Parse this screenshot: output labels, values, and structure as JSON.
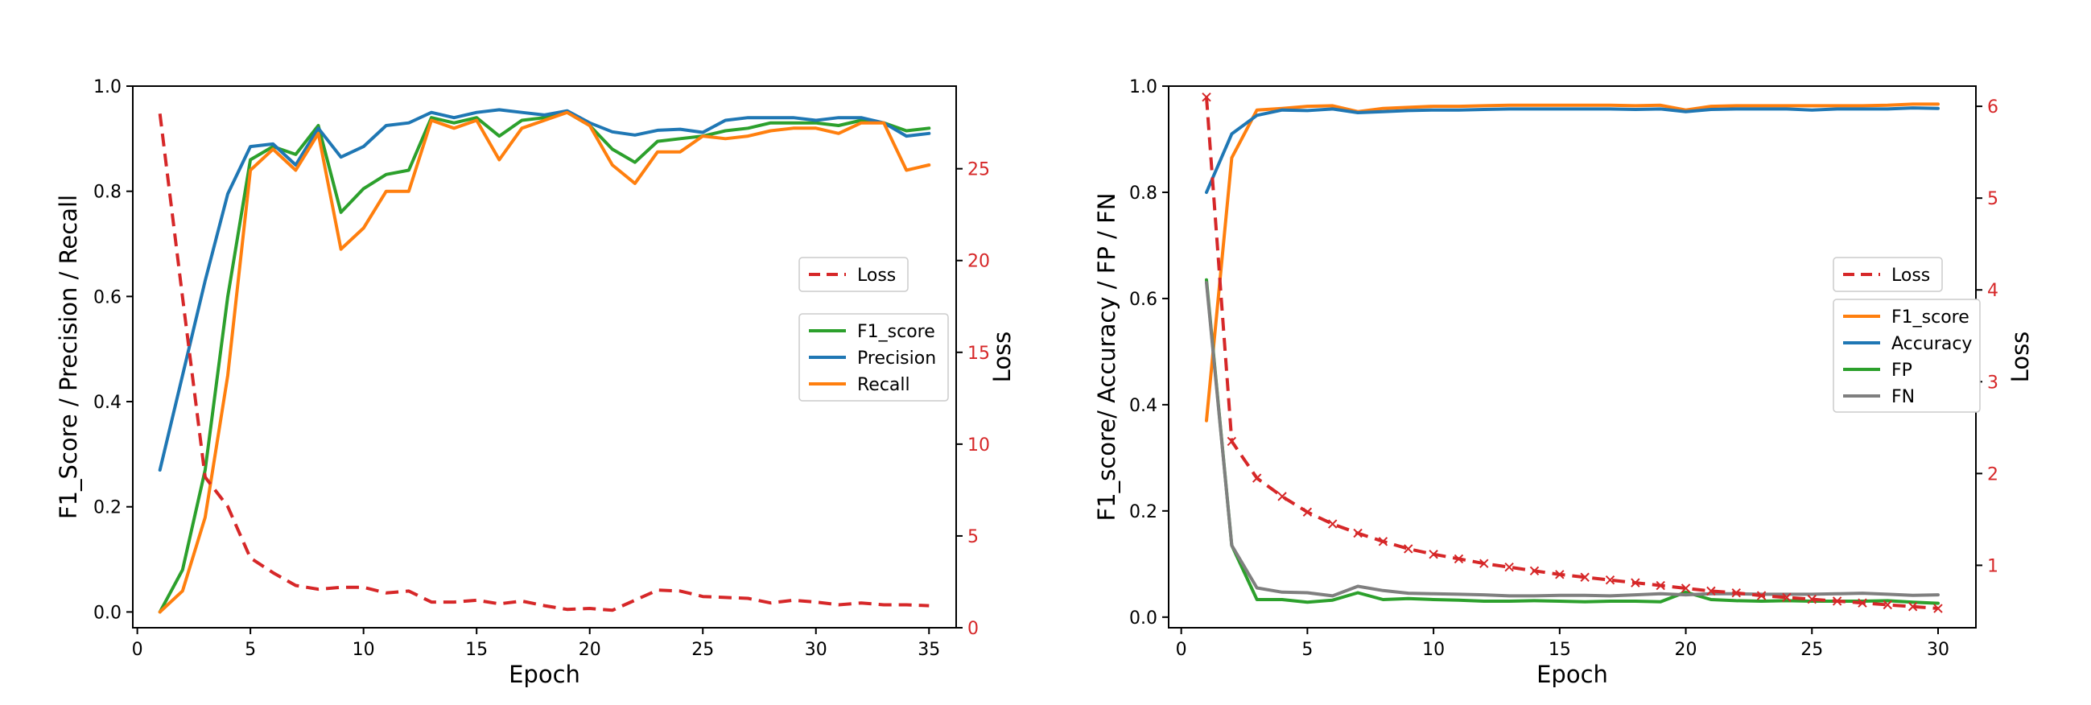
{
  "chart_data": [
    {
      "type": "line",
      "title": "",
      "xlabel": "Epoch",
      "ylabel": "F1_Score / Precision / Recall",
      "y2label": "Loss",
      "xlim": [
        -0.2,
        36.2
      ],
      "ylim": [
        -0.03,
        1.0
      ],
      "y2lim": [
        0,
        29.5
      ],
      "xticks": [
        0,
        5,
        10,
        15,
        20,
        25,
        30,
        35
      ],
      "yticks": [
        0.0,
        0.2,
        0.4,
        0.6,
        0.8,
        1.0
      ],
      "y2ticks": [
        0,
        5,
        10,
        15,
        20,
        25
      ],
      "x": [
        1,
        2,
        3,
        4,
        5,
        6,
        7,
        8,
        9,
        10,
        11,
        12,
        13,
        14,
        15,
        16,
        17,
        18,
        19,
        20,
        21,
        22,
        23,
        24,
        25,
        26,
        27,
        28,
        29,
        30,
        31,
        32,
        33,
        34,
        35
      ],
      "series": [
        {
          "name": "F1_score",
          "color": "#2ca02c",
          "axis": "left",
          "values": [
            0.0,
            0.08,
            0.27,
            0.6,
            0.86,
            0.885,
            0.87,
            0.925,
            0.76,
            0.805,
            0.832,
            0.84,
            0.94,
            0.93,
            0.94,
            0.905,
            0.935,
            0.94,
            0.95,
            0.925,
            0.88,
            0.855,
            0.895,
            0.9,
            0.905,
            0.915,
            0.92,
            0.93,
            0.93,
            0.93,
            0.925,
            0.935,
            0.93,
            0.915,
            0.92
          ]
        },
        {
          "name": "Precision",
          "color": "#1f77b4",
          "axis": "left",
          "values": [
            0.27,
            0.45,
            0.63,
            0.795,
            0.885,
            0.89,
            0.85,
            0.92,
            0.865,
            0.885,
            0.925,
            0.93,
            0.95,
            0.94,
            0.95,
            0.955,
            0.95,
            0.945,
            0.953,
            0.93,
            0.913,
            0.907,
            0.916,
            0.918,
            0.912,
            0.935,
            0.94,
            0.94,
            0.94,
            0.935,
            0.94,
            0.94,
            0.93,
            0.905,
            0.91
          ]
        },
        {
          "name": "Recall",
          "color": "#ff7f0e",
          "axis": "left",
          "values": [
            0.0,
            0.04,
            0.18,
            0.45,
            0.84,
            0.88,
            0.84,
            0.91,
            0.69,
            0.73,
            0.8,
            0.8,
            0.935,
            0.92,
            0.935,
            0.86,
            0.92,
            0.935,
            0.95,
            0.925,
            0.85,
            0.815,
            0.875,
            0.875,
            0.905,
            0.9,
            0.905,
            0.915,
            0.92,
            0.92,
            0.91,
            0.93,
            0.93,
            0.84,
            0.85
          ]
        },
        {
          "name": "Loss",
          "color": "#d62728",
          "axis": "right",
          "dashed": true,
          "values": [
            28.0,
            18.0,
            8.2,
            6.6,
            3.8,
            3.0,
            2.3,
            2.1,
            2.2,
            2.2,
            1.9,
            2.0,
            1.4,
            1.4,
            1.5,
            1.3,
            1.45,
            1.2,
            1.0,
            1.05,
            0.95,
            1.5,
            2.05,
            2.0,
            1.7,
            1.65,
            1.6,
            1.35,
            1.5,
            1.4,
            1.25,
            1.35,
            1.25,
            1.25,
            1.2
          ]
        }
      ],
      "legends": [
        {
          "entries": [
            "Loss"
          ],
          "placement": "center-right"
        },
        {
          "entries": [
            "F1_score",
            "Precision",
            "Recall"
          ],
          "placement": "center-right"
        }
      ],
      "grid": false
    },
    {
      "type": "line",
      "title": "",
      "xlabel": "Epoch",
      "ylabel": "F1_score/ Accuracy / FP / FN",
      "y2label": "Loss",
      "xlim": [
        -0.5,
        31.5
      ],
      "ylim": [
        -0.02,
        1.0
      ],
      "y2lim": [
        0.32,
        6.22
      ],
      "xticks": [
        0,
        5,
        10,
        15,
        20,
        25,
        30
      ],
      "yticks": [
        0.0,
        0.2,
        0.4,
        0.6,
        0.8,
        1.0
      ],
      "y2ticks": [
        1,
        2,
        3,
        4,
        5,
        6
      ],
      "x": [
        1,
        2,
        3,
        4,
        5,
        6,
        7,
        8,
        9,
        10,
        11,
        12,
        13,
        14,
        15,
        16,
        17,
        18,
        19,
        20,
        21,
        22,
        23,
        24,
        25,
        26,
        27,
        28,
        29,
        30
      ],
      "series": [
        {
          "name": "F1_score",
          "color": "#ff7f0e",
          "axis": "left",
          "values": [
            0.37,
            0.865,
            0.955,
            0.958,
            0.962,
            0.963,
            0.952,
            0.958,
            0.96,
            0.962,
            0.962,
            0.963,
            0.964,
            0.964,
            0.964,
            0.964,
            0.964,
            0.963,
            0.964,
            0.955,
            0.962,
            0.963,
            0.963,
            0.963,
            0.963,
            0.963,
            0.963,
            0.964,
            0.966,
            0.966
          ]
        },
        {
          "name": "Accuracy",
          "color": "#1f77b4",
          "axis": "left",
          "values": [
            0.8,
            0.91,
            0.945,
            0.955,
            0.954,
            0.957,
            0.95,
            0.952,
            0.954,
            0.955,
            0.955,
            0.956,
            0.957,
            0.957,
            0.957,
            0.957,
            0.957,
            0.956,
            0.957,
            0.952,
            0.956,
            0.957,
            0.957,
            0.957,
            0.955,
            0.957,
            0.957,
            0.957,
            0.959,
            0.958
          ]
        },
        {
          "name": "FP",
          "color": "#2ca02c",
          "axis": "left",
          "values": [
            0.635,
            0.135,
            0.033,
            0.033,
            0.028,
            0.032,
            0.046,
            0.033,
            0.035,
            0.033,
            0.032,
            0.03,
            0.03,
            0.031,
            0.03,
            0.029,
            0.03,
            0.03,
            0.029,
            0.047,
            0.033,
            0.031,
            0.03,
            0.031,
            0.03,
            0.03,
            0.03,
            0.031,
            0.028,
            0.026
          ]
        },
        {
          "name": "FN",
          "color": "#7f7f7f",
          "axis": "left",
          "values": [
            0.63,
            0.135,
            0.055,
            0.047,
            0.046,
            0.04,
            0.058,
            0.05,
            0.045,
            0.044,
            0.043,
            0.042,
            0.04,
            0.04,
            0.041,
            0.041,
            0.04,
            0.042,
            0.044,
            0.042,
            0.044,
            0.044,
            0.043,
            0.043,
            0.043,
            0.044,
            0.045,
            0.043,
            0.041,
            0.042
          ]
        },
        {
          "name": "Loss",
          "color": "#d62728",
          "axis": "right",
          "dashed": true,
          "marker": "x",
          "values": [
            6.1,
            2.35,
            1.95,
            1.75,
            1.58,
            1.45,
            1.35,
            1.26,
            1.18,
            1.12,
            1.07,
            1.02,
            0.98,
            0.94,
            0.9,
            0.87,
            0.84,
            0.81,
            0.78,
            0.75,
            0.72,
            0.7,
            0.67,
            0.65,
            0.63,
            0.61,
            0.59,
            0.57,
            0.55,
            0.53
          ]
        }
      ],
      "legends": [
        {
          "entries": [
            "Loss"
          ],
          "placement": "center-right"
        },
        {
          "entries": [
            "F1_score",
            "Accuracy",
            "FP",
            "FN"
          ],
          "placement": "center-right"
        }
      ],
      "grid": false
    }
  ]
}
